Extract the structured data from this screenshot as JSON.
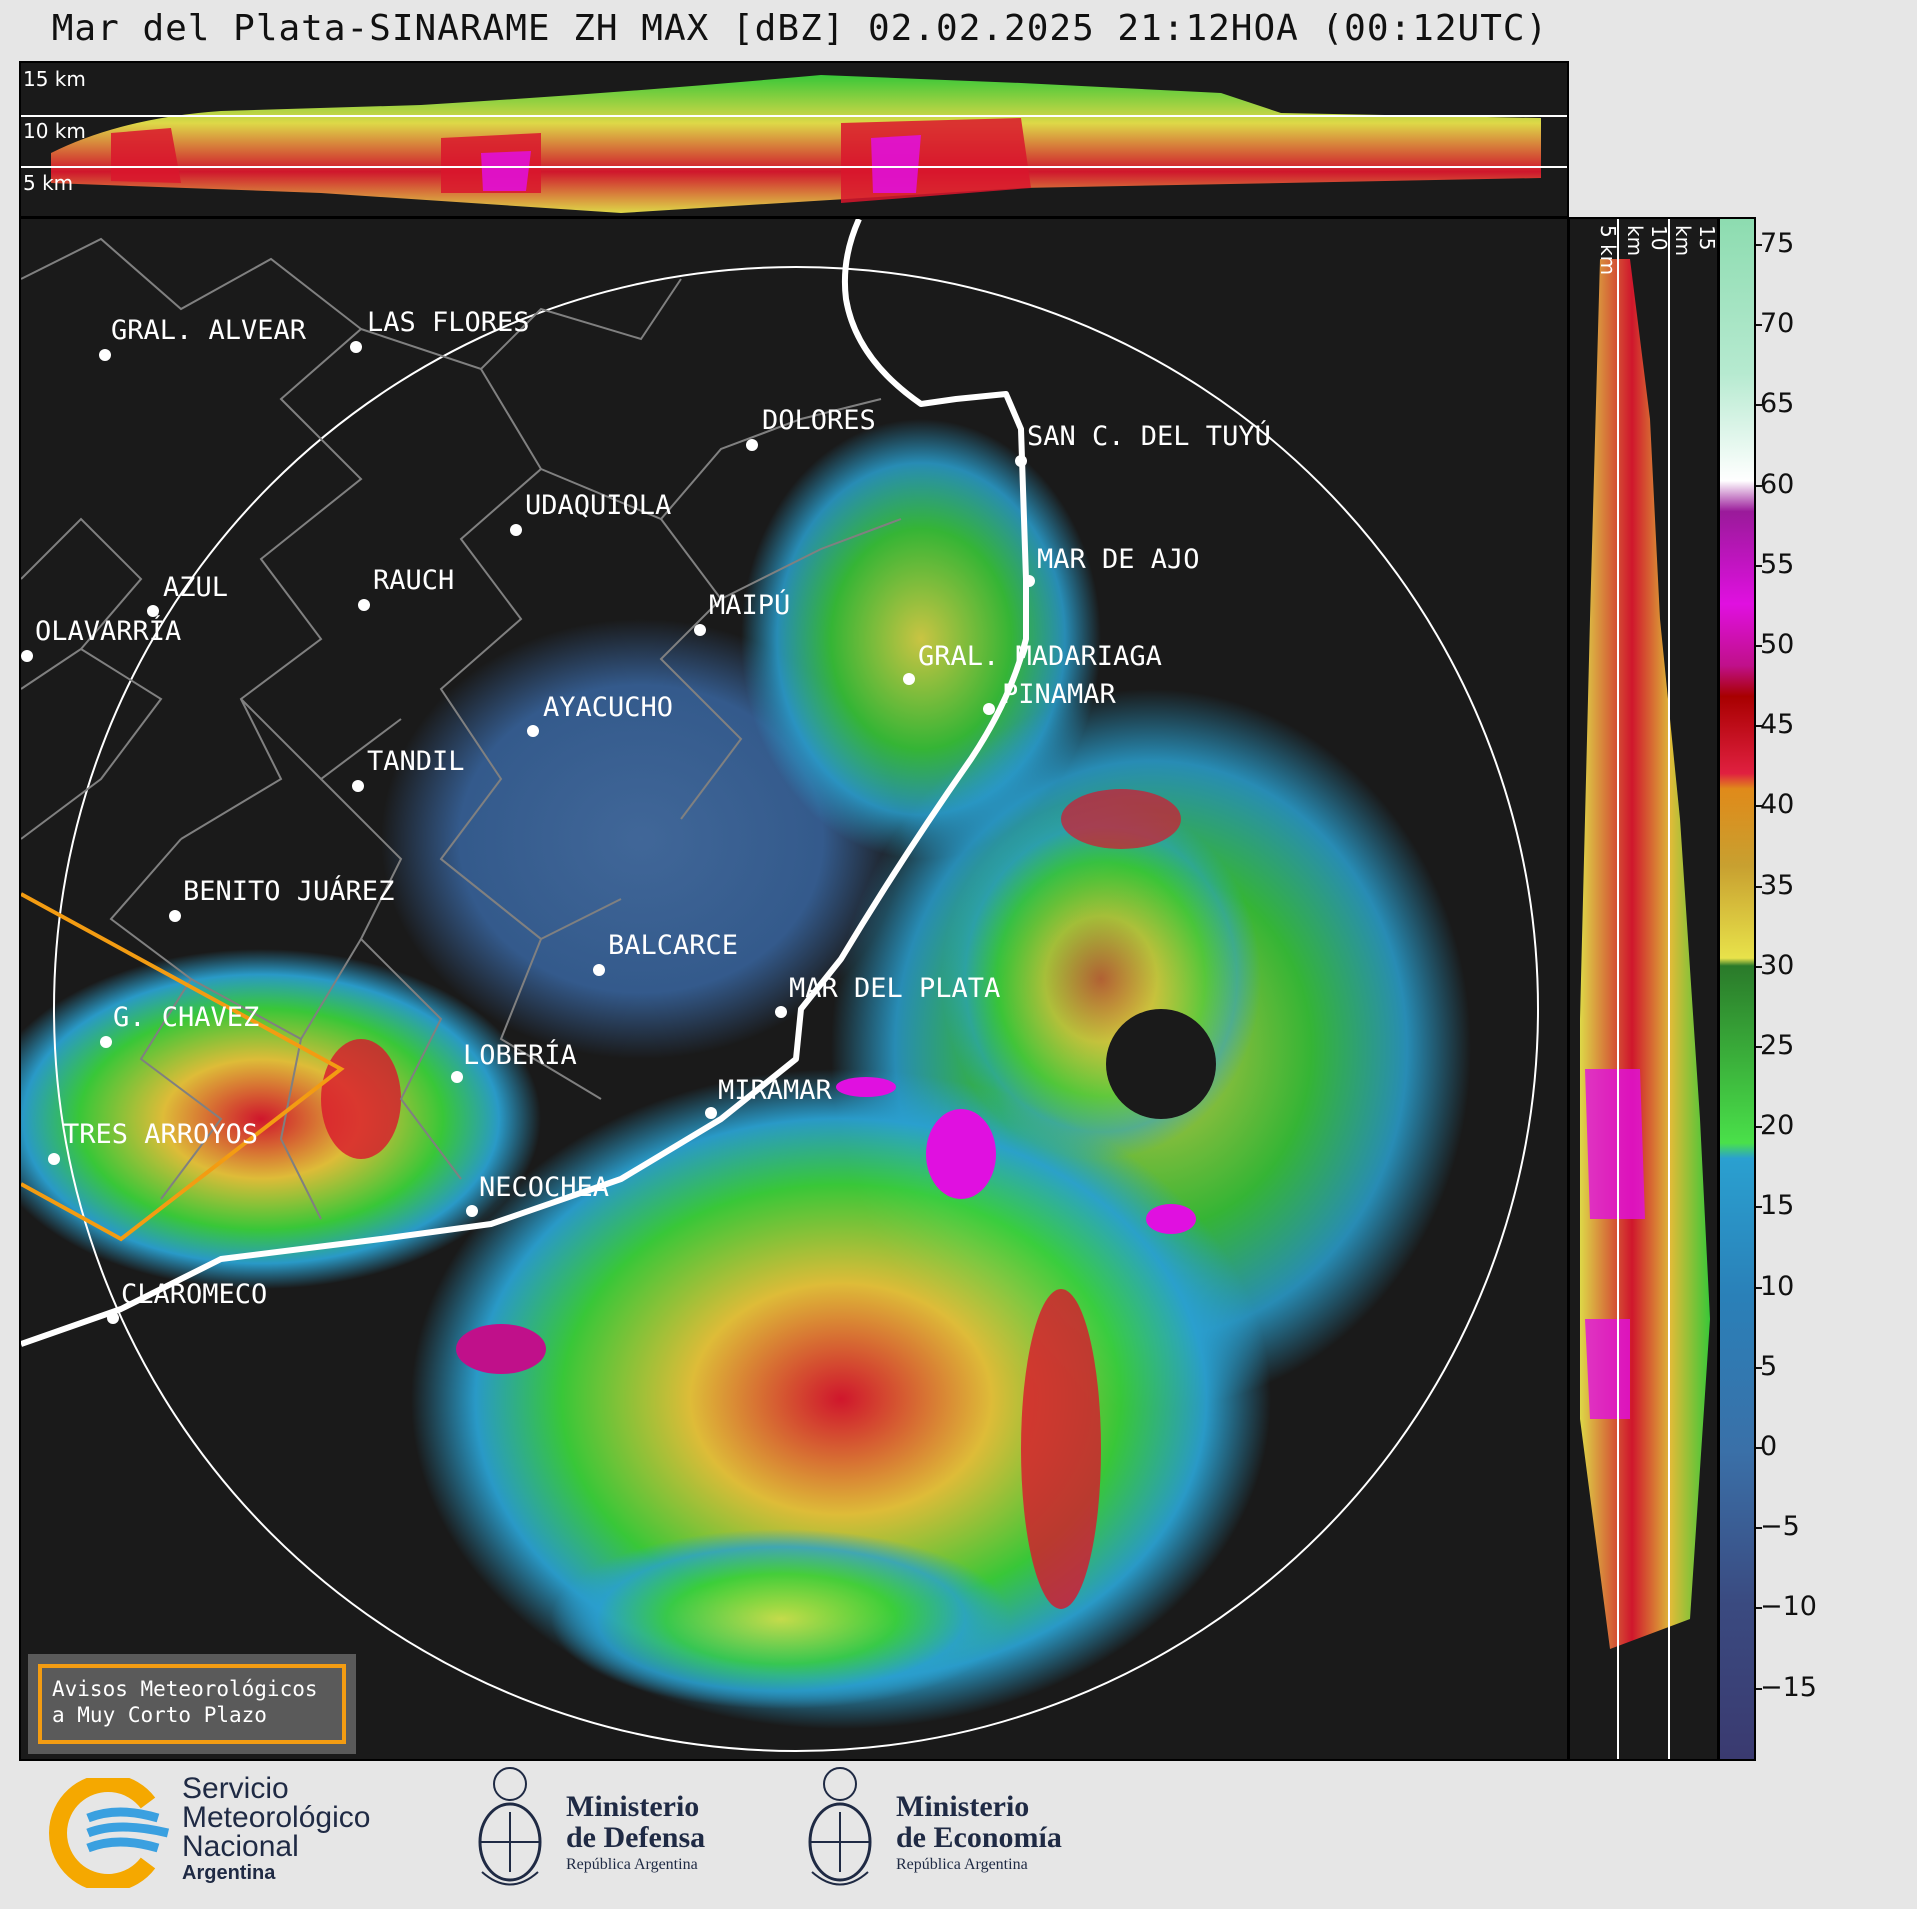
{
  "title": "Mar del Plata-SINARAME ZH MAX [dBZ] 02.02.2025 21:12HOA (00:12UTC)",
  "top_panel": {
    "height_labels": [
      "15 km",
      "10 km",
      "5 km"
    ]
  },
  "right_panel": {
    "height_labels": [
      "5 km",
      "10 km",
      "15 km"
    ]
  },
  "colorbar": {
    "ticks": [
      "75",
      "70",
      "65",
      "60",
      "55",
      "50",
      "45",
      "40",
      "35",
      "30",
      "25",
      "20",
      "15",
      "10",
      "5",
      "0",
      "−5",
      "−10",
      "−15"
    ]
  },
  "cities": [
    {
      "name": "GRAL. ALVEAR"
    },
    {
      "name": "LAS FLORES"
    },
    {
      "name": "DOLORES"
    },
    {
      "name": "SAN C. DEL TUYÚ"
    },
    {
      "name": "UDAQUIOLA"
    },
    {
      "name": "AZUL"
    },
    {
      "name": "RAUCH"
    },
    {
      "name": "MAR DE AJO"
    },
    {
      "name": "OLAVARRÍA"
    },
    {
      "name": "MAIPÚ"
    },
    {
      "name": "GRAL. MADARIAGA"
    },
    {
      "name": "PINAMAR"
    },
    {
      "name": "AYACUCHO"
    },
    {
      "name": "TANDIL"
    },
    {
      "name": "BENITO JUÁREZ"
    },
    {
      "name": "BALCARCE"
    },
    {
      "name": "MAR DEL PLATA"
    },
    {
      "name": "G. CHAVEZ"
    },
    {
      "name": "LOBERÍA"
    },
    {
      "name": "MIRAMAR"
    },
    {
      "name": "TRES ARROYOS"
    },
    {
      "name": "NECOCHEA"
    },
    {
      "name": "CLAROMECO"
    }
  ],
  "warning": {
    "line1": "Avisos Meteorológicos",
    "line2": "a Muy Corto Plazo"
  },
  "logos": {
    "smn": {
      "line1": "Servicio",
      "line2": "Meteorológico",
      "line3": "Nacional",
      "line4": "Argentina"
    },
    "defensa": {
      "line1": "Ministerio",
      "line2": "de Defensa",
      "line3": "República Argentina"
    },
    "economia": {
      "line1": "Ministerio",
      "line2": "de Economía",
      "line3": "República Argentina"
    }
  },
  "colors": {
    "background": "#1a1a1a",
    "coast": "#ffffff",
    "boundary": "#808080",
    "warning_border": "#f39c12"
  }
}
